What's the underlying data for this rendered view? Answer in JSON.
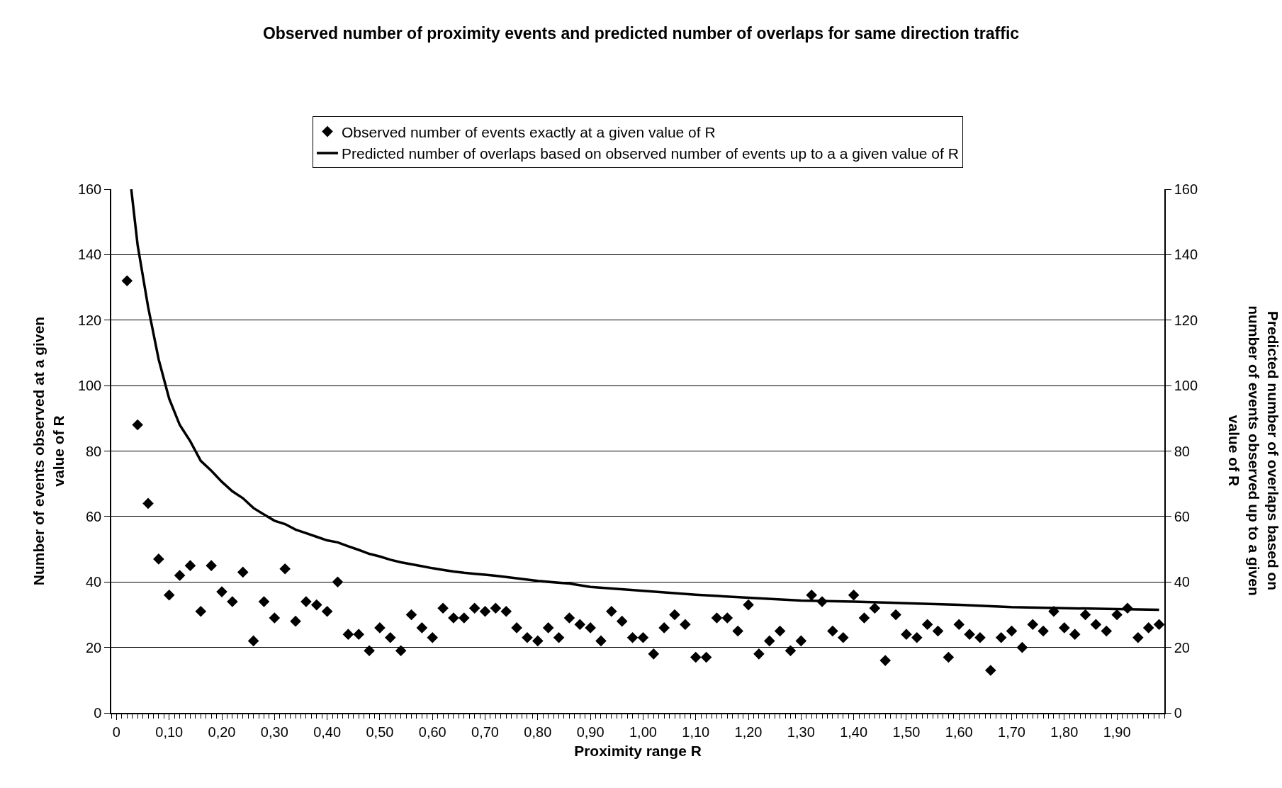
{
  "chart_data": {
    "type": "scatter",
    "title": "Observed number of proximity events and predicted number of overlaps for same direction traffic",
    "xlabel": "Proximity range R",
    "ylabel": "Number of events observed at a given value of R",
    "y2label": "Predicted number of overlaps based on number of events observed up to a given value of R",
    "xlim": [
      -0.01,
      1.99
    ],
    "xticks": [
      0,
      {
        "value": 0.1,
        "label": "0,10"
      },
      {
        "value": 0.2,
        "label": "0,20"
      },
      {
        "value": 0.3,
        "label": "0,30"
      },
      {
        "value": 0.4,
        "label": "0,40"
      },
      {
        "value": 0.5,
        "label": "0,50"
      },
      {
        "value": 0.6,
        "label": "0,60"
      },
      {
        "value": 0.7,
        "label": "0,70"
      },
      {
        "value": 0.8,
        "label": "0,80"
      },
      {
        "value": 0.9,
        "label": "0,90"
      },
      {
        "value": 1.0,
        "label": "1,00"
      },
      {
        "value": 1.1,
        "label": "1,10"
      },
      {
        "value": 1.2,
        "label": "1,20"
      },
      {
        "value": 1.3,
        "label": "1,30"
      },
      {
        "value": 1.4,
        "label": "1,40"
      },
      {
        "value": 1.5,
        "label": "1,50"
      },
      {
        "value": 1.6,
        "label": "1,60"
      },
      {
        "value": 1.7,
        "label": "1,70"
      },
      {
        "value": 1.8,
        "label": "1,80"
      },
      {
        "value": 1.9,
        "label": "1,90"
      }
    ],
    "ylim": [
      0,
      160
    ],
    "yticks": [
      0,
      20,
      40,
      60,
      80,
      100,
      120,
      140,
      160
    ],
    "y2lim": [
      0,
      160
    ],
    "y2ticks": [
      0,
      20,
      40,
      60,
      80,
      100,
      120,
      140,
      160
    ],
    "grid": "y",
    "legend": "top",
    "series": [
      {
        "name": "Observed number of events exactly at a given value of R",
        "marker": "diamond",
        "color": "#000000",
        "x": [
          0.02,
          0.04,
          0.06,
          0.08,
          0.1,
          0.12,
          0.14,
          0.16,
          0.18,
          0.2,
          0.22,
          0.24,
          0.26,
          0.28,
          0.3,
          0.32,
          0.34,
          0.36,
          0.38,
          0.4,
          0.42,
          0.44,
          0.46,
          0.48,
          0.5,
          0.52,
          0.54,
          0.56,
          0.58,
          0.6,
          0.62,
          0.64,
          0.66,
          0.68,
          0.7,
          0.72,
          0.74,
          0.76,
          0.78,
          0.8,
          0.82,
          0.84,
          0.86,
          0.88,
          0.9,
          0.92,
          0.94,
          0.96,
          0.98,
          1.0,
          1.02,
          1.04,
          1.06,
          1.08,
          1.1,
          1.12,
          1.14,
          1.16,
          1.18,
          1.2,
          1.22,
          1.24,
          1.26,
          1.28,
          1.3,
          1.32,
          1.34,
          1.36,
          1.38,
          1.4,
          1.42,
          1.44,
          1.46,
          1.48,
          1.5,
          1.52,
          1.54,
          1.56,
          1.58,
          1.6,
          1.62,
          1.64,
          1.66,
          1.68,
          1.7,
          1.72,
          1.74,
          1.76,
          1.78,
          1.8,
          1.82,
          1.84,
          1.86,
          1.88,
          1.9,
          1.92,
          1.94,
          1.96,
          1.98
        ],
        "values": [
          132,
          88,
          64,
          47,
          36,
          42,
          45,
          31,
          45,
          37,
          34,
          43,
          22,
          34,
          29,
          44,
          28,
          34,
          33,
          31,
          40,
          24,
          24,
          19,
          26,
          23,
          19,
          30,
          26,
          23,
          32,
          29,
          29,
          32,
          31,
          32,
          31,
          26,
          23,
          22,
          26,
          23,
          29,
          27,
          26,
          22,
          31,
          28,
          23,
          23,
          18,
          26,
          30,
          27,
          17,
          17,
          29,
          29,
          25,
          33,
          18,
          22,
          25,
          19,
          22,
          36,
          34,
          25,
          23,
          36,
          29,
          32,
          16,
          30,
          24,
          23,
          27,
          25,
          17,
          27,
          24,
          23,
          13,
          23,
          25,
          20,
          27,
          25,
          31,
          26,
          24,
          30,
          27,
          25,
          30,
          32,
          23,
          26,
          27
        ]
      },
      {
        "name": "Predicted number of overlaps based on observed number of events up to a a given value of R",
        "type": "line",
        "axis": "y2",
        "marker": "none",
        "line_style": "solid",
        "color": "#000000",
        "x": [
          0.028,
          0.04,
          0.06,
          0.08,
          0.1,
          0.12,
          0.14,
          0.16,
          0.18,
          0.2,
          0.22,
          0.24,
          0.26,
          0.28,
          0.3,
          0.32,
          0.34,
          0.36,
          0.38,
          0.4,
          0.42,
          0.44,
          0.46,
          0.48,
          0.5,
          0.52,
          0.54,
          0.56,
          0.58,
          0.6,
          0.62,
          0.64,
          0.66,
          0.68,
          0.7,
          0.72,
          0.74,
          0.8,
          0.86,
          0.9,
          1.0,
          1.1,
          1.2,
          1.3,
          1.4,
          1.5,
          1.6,
          1.7,
          1.8,
          1.9,
          1.98
        ],
        "values": [
          160,
          143,
          124,
          108,
          96,
          88,
          83,
          77,
          74,
          70.6,
          67.7,
          65.6,
          62.6,
          60.6,
          58.7,
          57.7,
          56,
          54.9,
          53.8,
          52.7,
          52.1,
          50.9,
          49.8,
          48.6,
          47.8,
          46.8,
          46,
          45.4,
          44.8,
          44.2,
          43.7,
          43.2,
          42.8,
          42.5,
          42.2,
          41.9,
          41.5,
          40.3,
          39.5,
          38.5,
          37.3,
          36.1,
          35.2,
          34.3,
          34,
          33.5,
          33,
          32.3,
          32,
          31.7,
          31.5
        ]
      }
    ]
  }
}
